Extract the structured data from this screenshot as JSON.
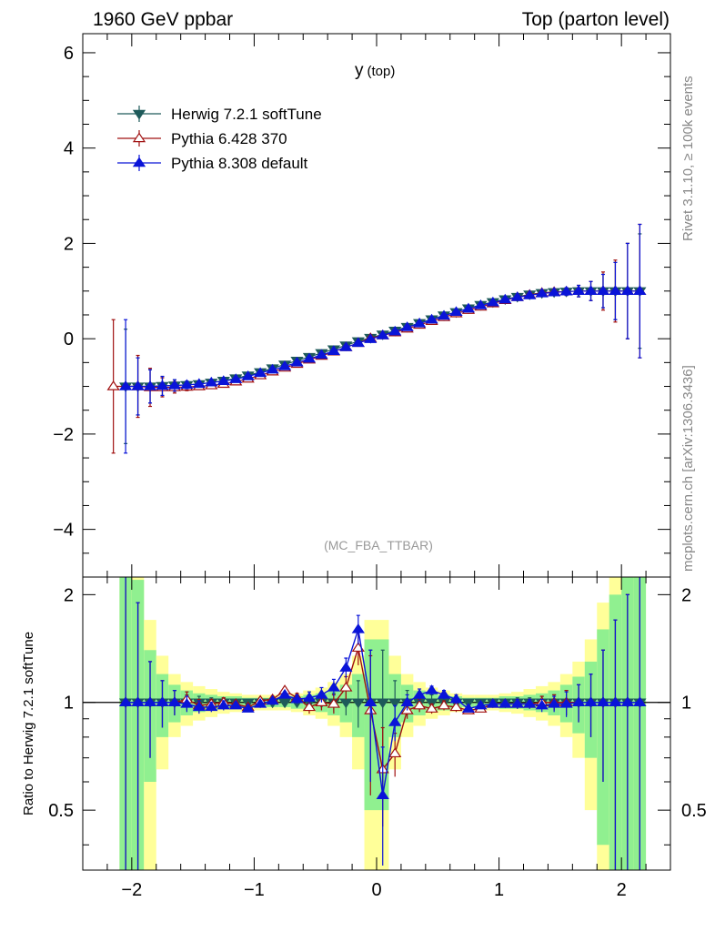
{
  "header": {
    "left": "1960 GeV ppbar",
    "right": "Top (parton level)"
  },
  "side_labels": {
    "rivet": "Rivet 3.1.10, ≥ 100k events",
    "mcplots": "mcplots.cern.ch [arXiv:1306.3436]"
  },
  "plot": {
    "title_main": "y",
    "title_sub": "(top)",
    "analysis_tag": "(MC_FBA_TTBAR)",
    "ratio_ylabel": "Ratio to Herwig 7.2.1 softTune"
  },
  "colors": {
    "herwig": "#1e5a5a",
    "pythia6": "#a01010",
    "pythia8": "#0a14d8",
    "band_inner": "#90f090",
    "band_outer": "#ffff99"
  },
  "chart_data": [
    {
      "type": "line",
      "panel": "main",
      "xlim": [
        -2.4,
        2.4
      ],
      "ylim": [
        -5,
        6.4
      ],
      "xticks": [
        -2,
        -1,
        0,
        1,
        2
      ],
      "yticks": [
        -4,
        -2,
        0,
        2,
        4,
        6
      ],
      "x": [
        -2.05,
        -1.95,
        -1.85,
        -1.75,
        -1.65,
        -1.55,
        -1.45,
        -1.35,
        -1.25,
        -1.15,
        -1.05,
        -0.95,
        -0.85,
        -0.75,
        -0.65,
        -0.55,
        -0.45,
        -0.35,
        -0.25,
        -0.15,
        -0.05,
        0.05,
        0.15,
        0.25,
        0.35,
        0.45,
        0.55,
        0.65,
        0.75,
        0.85,
        0.95,
        1.05,
        1.15,
        1.25,
        1.35,
        1.45,
        1.55,
        1.65,
        1.75,
        1.85,
        1.95,
        2.05,
        2.15
      ],
      "legend": [
        "Herwig 7.2.1 softTune",
        "Pythia 6.428 370",
        "Pythia 8.308 default"
      ],
      "legend_position": "top-left",
      "series": [
        {
          "name": "Herwig 7.2.1 softTune",
          "marker": "triangle-down-filled",
          "values": [
            -1.0,
            -1.0,
            -1.0,
            -0.99,
            -0.98,
            -0.97,
            -0.95,
            -0.92,
            -0.88,
            -0.83,
            -0.77,
            -0.7,
            -0.62,
            -0.54,
            -0.46,
            -0.38,
            -0.3,
            -0.22,
            -0.14,
            -0.05,
            0.02,
            0.09,
            0.17,
            0.25,
            0.33,
            0.41,
            0.49,
            0.56,
            0.64,
            0.71,
            0.77,
            0.83,
            0.88,
            0.93,
            0.96,
            0.98,
            0.99,
            1.0,
            1.0,
            1.0,
            1.0,
            1.0,
            1.0
          ],
          "errors": [
            1.2,
            0.6,
            0.35,
            0.2,
            0.12,
            0.08,
            0.06,
            0.05,
            0.04,
            0.03,
            0.03,
            0.02,
            0.02,
            0.02,
            0.02,
            0.02,
            0.02,
            0.02,
            0.02,
            0.02,
            0.02,
            0.02,
            0.02,
            0.02,
            0.02,
            0.02,
            0.02,
            0.02,
            0.02,
            0.02,
            0.02,
            0.03,
            0.03,
            0.04,
            0.05,
            0.06,
            0.08,
            0.12,
            0.2,
            0.35,
            0.6,
            1.0,
            1.2
          ]
        },
        {
          "name": "Pythia 6.428 370",
          "marker": "triangle-up-open",
          "x_override_first": -2.15,
          "values": [
            -1.0,
            -1.0,
            -1.02,
            -1.02,
            -1.02,
            -1.01,
            -1.0,
            -0.98,
            -0.95,
            -0.9,
            -0.84,
            -0.77,
            -0.69,
            -0.61,
            -0.53,
            -0.44,
            -0.36,
            -0.27,
            -0.18,
            -0.09,
            0.01,
            0.07,
            0.13,
            0.21,
            0.29,
            0.37,
            0.45,
            0.53,
            0.6,
            0.67,
            0.74,
            0.81,
            0.87,
            0.92,
            0.96,
            0.98,
            0.99,
            1.0,
            1.0,
            1.0,
            1.0,
            1.0,
            1.0
          ],
          "errors": [
            1.4,
            0.65,
            0.4,
            0.2,
            0.12,
            0.08,
            0.06,
            0.05,
            0.04,
            0.03,
            0.03,
            0.02,
            0.02,
            0.02,
            0.02,
            0.02,
            0.02,
            0.02,
            0.02,
            0.02,
            0.02,
            0.02,
            0.02,
            0.02,
            0.02,
            0.02,
            0.02,
            0.02,
            0.02,
            0.02,
            0.02,
            0.03,
            0.03,
            0.04,
            0.05,
            0.06,
            0.08,
            0.12,
            0.2,
            0.4,
            0.65,
            1.0,
            1.4
          ]
        },
        {
          "name": "Pythia 8.308 default",
          "marker": "triangle-up-filled",
          "values": [
            -1.0,
            -1.0,
            -1.0,
            -0.99,
            -0.98,
            -0.97,
            -0.95,
            -0.92,
            -0.89,
            -0.85,
            -0.79,
            -0.72,
            -0.65,
            -0.58,
            -0.5,
            -0.42,
            -0.34,
            -0.26,
            -0.18,
            -0.09,
            -0.01,
            0.07,
            0.15,
            0.24,
            0.32,
            0.4,
            0.48,
            0.56,
            0.63,
            0.7,
            0.76,
            0.82,
            0.87,
            0.91,
            0.95,
            0.97,
            0.99,
            1.0,
            1.0,
            1.0,
            1.0,
            1.0,
            1.0
          ],
          "errors": [
            1.4,
            0.6,
            0.35,
            0.2,
            0.12,
            0.08,
            0.06,
            0.05,
            0.04,
            0.03,
            0.03,
            0.02,
            0.02,
            0.02,
            0.02,
            0.02,
            0.02,
            0.02,
            0.02,
            0.02,
            0.02,
            0.02,
            0.02,
            0.02,
            0.02,
            0.02,
            0.02,
            0.02,
            0.02,
            0.02,
            0.02,
            0.03,
            0.03,
            0.04,
            0.05,
            0.06,
            0.08,
            0.12,
            0.2,
            0.35,
            0.6,
            1.0,
            1.4
          ]
        }
      ]
    },
    {
      "type": "line",
      "panel": "ratio",
      "ylabel": "Ratio to Herwig 7.2.1 softTune",
      "xlim": [
        -2.4,
        2.4
      ],
      "ylim": [
        0.34,
        2.24
      ],
      "yscale": "log",
      "xticks": [
        -2,
        -1,
        0,
        1,
        2
      ],
      "yticks": [
        0.5,
        1,
        2
      ],
      "reference_line": 1,
      "x": [
        -2.05,
        -1.95,
        -1.85,
        -1.75,
        -1.65,
        -1.55,
        -1.45,
        -1.35,
        -1.25,
        -1.15,
        -1.05,
        -0.95,
        -0.85,
        -0.75,
        -0.65,
        -0.55,
        -0.45,
        -0.35,
        -0.25,
        -0.15,
        -0.05,
        0.05,
        0.15,
        0.25,
        0.35,
        0.45,
        0.55,
        0.65,
        0.75,
        0.85,
        0.95,
        1.05,
        1.15,
        1.25,
        1.35,
        1.45,
        1.55,
        1.65,
        1.75,
        1.85,
        1.95,
        2.05,
        2.15
      ],
      "band_inner": [
        1.9,
        1.2,
        0.4,
        0.2,
        0.12,
        0.08,
        0.06,
        0.05,
        0.04,
        0.04,
        0.03,
        0.03,
        0.03,
        0.03,
        0.04,
        0.05,
        0.06,
        0.08,
        0.12,
        0.2,
        0.5,
        0.5,
        0.2,
        0.12,
        0.08,
        0.06,
        0.05,
        0.04,
        0.03,
        0.03,
        0.03,
        0.04,
        0.04,
        0.05,
        0.06,
        0.08,
        0.12,
        0.18,
        0.3,
        0.6,
        1.0,
        1.3,
        1.9
      ],
      "band_outer": [
        2.5,
        1.8,
        0.7,
        0.35,
        0.2,
        0.14,
        0.11,
        0.09,
        0.07,
        0.06,
        0.05,
        0.05,
        0.05,
        0.05,
        0.06,
        0.08,
        0.1,
        0.14,
        0.2,
        0.35,
        0.7,
        0.7,
        0.35,
        0.2,
        0.14,
        0.1,
        0.08,
        0.06,
        0.05,
        0.05,
        0.05,
        0.06,
        0.07,
        0.09,
        0.11,
        0.14,
        0.2,
        0.3,
        0.5,
        0.9,
        1.5,
        2.2,
        2.5
      ],
      "series": [
        {
          "name": "Herwig 7.2.1 softTune",
          "values": [
            1,
            1,
            1,
            1,
            1,
            1,
            1,
            1,
            1,
            1,
            1,
            1,
            1,
            1,
            1,
            1,
            1,
            1,
            1,
            1,
            1,
            1,
            1,
            1,
            1,
            1,
            1,
            1,
            1,
            1,
            1,
            1,
            1,
            1,
            1,
            1,
            1,
            1,
            1,
            1,
            1,
            1,
            1
          ],
          "errors": [
            1.5,
            0.9,
            0.3,
            0.15,
            0.08,
            0.05,
            0.04,
            0.03,
            0.03,
            0.02,
            0.02,
            0.02,
            0.02,
            0.02,
            0.03,
            0.04,
            0.05,
            0.06,
            0.08,
            0.15,
            0.4,
            0.4,
            0.15,
            0.08,
            0.06,
            0.05,
            0.04,
            0.03,
            0.02,
            0.02,
            0.02,
            0.02,
            0.03,
            0.03,
            0.04,
            0.05,
            0.08,
            0.12,
            0.2,
            0.4,
            0.7,
            1.0,
            1.5
          ]
        },
        {
          "name": "Pythia 6.428 370",
          "values": [
            1,
            1,
            1,
            1,
            1,
            1.02,
            0.98,
            0.99,
            1.0,
            0.99,
            0.97,
            1.01,
            1.02,
            1.08,
            1.03,
            0.97,
            1.0,
            0.99,
            1.1,
            1.42,
            0.95,
            0.65,
            0.72,
            0.95,
            0.98,
            0.96,
            0.98,
            0.97,
            0.95,
            0.96,
            0.99,
            0.99,
            0.99,
            0.99,
            1.0,
            1.0,
            1.0,
            1.0,
            1.0,
            1.0,
            1.0,
            1.0,
            1.0
          ],
          "errors": [
            1.6,
            0.9,
            0.3,
            0.15,
            0.08,
            0.05,
            0.04,
            0.03,
            0.03,
            0.02,
            0.02,
            0.02,
            0.02,
            0.02,
            0.03,
            0.04,
            0.05,
            0.06,
            0.08,
            0.15,
            0.4,
            0.2,
            0.1,
            0.05,
            0.04,
            0.03,
            0.03,
            0.03,
            0.02,
            0.02,
            0.02,
            0.02,
            0.03,
            0.03,
            0.04,
            0.05,
            0.08,
            0.12,
            0.2,
            0.4,
            0.7,
            1.0,
            1.6
          ]
        },
        {
          "name": "Pythia 8.308 default",
          "values": [
            1,
            1,
            1,
            1,
            1,
            0.99,
            0.97,
            0.97,
            0.98,
            0.98,
            0.96,
            0.99,
            1.01,
            1.05,
            1.02,
            1.03,
            1.05,
            1.1,
            1.25,
            1.6,
            1.0,
            0.55,
            0.88,
            1.0,
            1.05,
            1.08,
            1.05,
            1.02,
            0.96,
            0.98,
            0.99,
            0.99,
            0.99,
            0.99,
            0.98,
            0.99,
            0.99,
            1.0,
            1.0,
            1.0,
            1.0,
            1.0,
            1.0
          ],
          "errors": [
            1.5,
            0.9,
            0.3,
            0.15,
            0.08,
            0.05,
            0.04,
            0.03,
            0.03,
            0.02,
            0.02,
            0.02,
            0.02,
            0.02,
            0.03,
            0.04,
            0.05,
            0.06,
            0.08,
            0.15,
            0.4,
            0.2,
            0.1,
            0.05,
            0.04,
            0.03,
            0.03,
            0.03,
            0.02,
            0.02,
            0.02,
            0.02,
            0.03,
            0.03,
            0.04,
            0.05,
            0.08,
            0.12,
            0.2,
            0.4,
            0.7,
            1.0,
            1.5
          ]
        }
      ]
    }
  ]
}
